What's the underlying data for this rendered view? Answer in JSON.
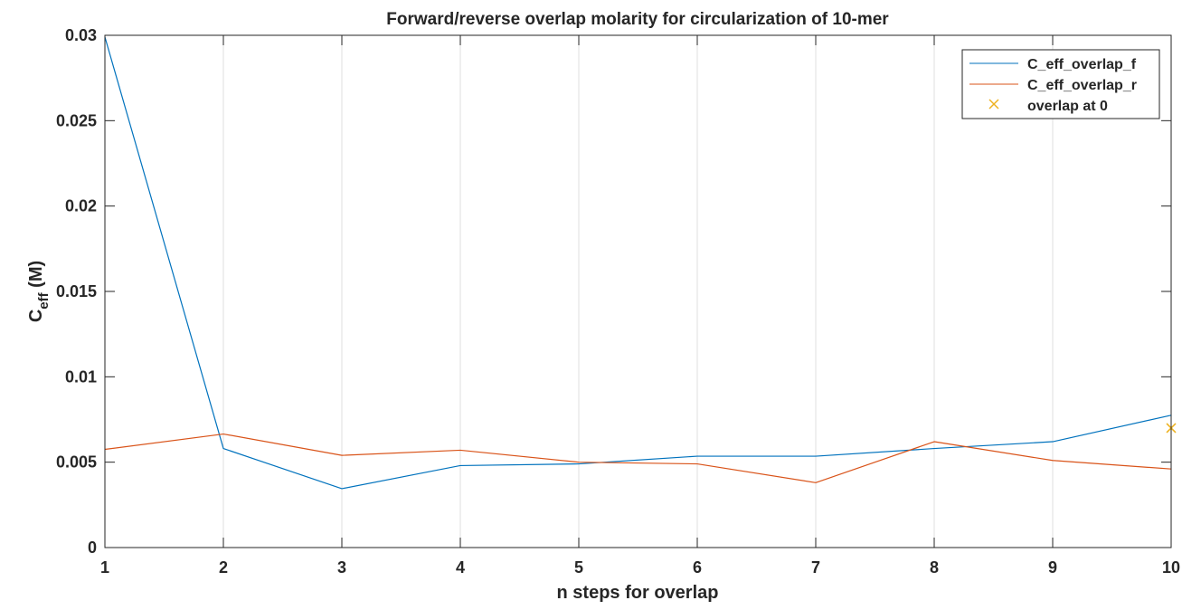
{
  "chart_data": {
    "type": "line",
    "title": "Forward/reverse overlap molarity for circularization of 10-mer",
    "xlabel": "n steps for overlap",
    "ylabel": {
      "main": "C",
      "sub": "eff",
      "unit": " (M)"
    },
    "x": [
      1,
      2,
      3,
      4,
      5,
      6,
      7,
      8,
      9,
      10
    ],
    "xlim": [
      1,
      10
    ],
    "ylim": [
      0,
      0.03
    ],
    "x_ticks": [
      1,
      2,
      3,
      4,
      5,
      6,
      7,
      8,
      9,
      10
    ],
    "x_tick_labels": [
      "1",
      "2",
      "3",
      "4",
      "5",
      "6",
      "7",
      "8",
      "9",
      "10"
    ],
    "y_ticks": [
      0,
      0.005,
      0.01,
      0.015,
      0.02,
      0.025,
      0.03
    ],
    "y_tick_labels": [
      "0",
      "0.005",
      "0.01",
      "0.015",
      "0.02",
      "0.025",
      "0.03"
    ],
    "grid": "vertical",
    "legend_position": "top-right",
    "series": [
      {
        "name": "C_eff_overlap_f",
        "color": "#0072BD",
        "marker": "none",
        "values": [
          0.0299,
          0.0058,
          0.00345,
          0.0048,
          0.0049,
          0.00535,
          0.00535,
          0.0058,
          0.0062,
          0.00775
        ]
      },
      {
        "name": "C_eff_overlap_r",
        "color": "#D95319",
        "marker": "none",
        "values": [
          0.00575,
          0.00665,
          0.0054,
          0.0057,
          0.005,
          0.0049,
          0.0038,
          0.0062,
          0.0051,
          0.0046
        ]
      },
      {
        "name": "overlap at 0",
        "color": "#EDB120",
        "marker": "x",
        "points": [
          [
            10,
            0.007
          ]
        ]
      }
    ]
  }
}
